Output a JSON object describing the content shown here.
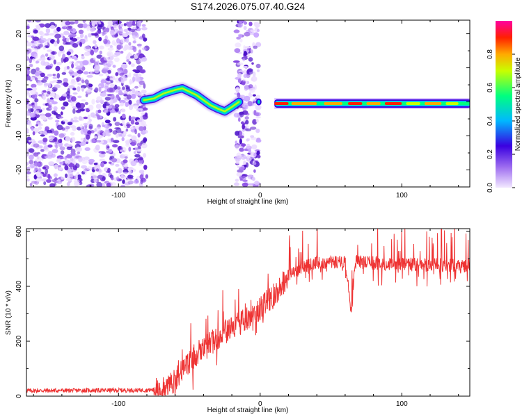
{
  "title": "S174.2026.075.07.40.G24",
  "chart_data": [
    {
      "type": "heatmap",
      "xlabel": "Height of straight line (km)",
      "ylabel": "Frequency (Hz)",
      "xlim": [
        -165,
        148
      ],
      "ylim": [
        -25,
        24
      ],
      "xticks": [
        -100,
        0,
        100
      ],
      "yticks": [
        20,
        10,
        0,
        -10,
        -20
      ],
      "colorbar_label": "Normalized spectral amplitude",
      "colorbar_ticks": [
        0.0,
        0.2,
        0.4,
        0.6,
        0.8
      ],
      "colorbar_range": [
        0,
        1
      ],
      "noise_regions_km": [
        [
          -165,
          -80
        ],
        [
          -16,
          -1
        ]
      ],
      "ridge": [
        {
          "x": -82,
          "f": 0.5
        },
        {
          "x": -75,
          "f": 1.0
        },
        {
          "x": -68,
          "f": 2.5
        },
        {
          "x": -60,
          "f": 3.5
        },
        {
          "x": -55,
          "f": 4.0
        },
        {
          "x": -50,
          "f": 3.0
        },
        {
          "x": -45,
          "f": 2.0
        },
        {
          "x": -40,
          "f": 0.5
        },
        {
          "x": -35,
          "f": -1.0
        },
        {
          "x": -30,
          "f": -2.0
        },
        {
          "x": -25,
          "f": -2.8
        },
        {
          "x": -20,
          "f": -1.5
        },
        {
          "x": -15,
          "f": 0.0
        }
      ],
      "tone": {
        "x_start": 10,
        "x_end": 148,
        "f": -0.5
      }
    },
    {
      "type": "line",
      "xlabel": "Height of straight line (km)",
      "ylabel": "SNR (10 * v/v)",
      "xlim": [
        -165,
        148
      ],
      "ylim": [
        0,
        610
      ],
      "xticks": [
        -100,
        0,
        100
      ],
      "yticks": [
        0,
        200,
        400,
        600
      ],
      "color": "#ee3333",
      "series": [
        {
          "name": "SNR",
          "x": [
            -165,
            -80,
            -70,
            -60,
            -50,
            -40,
            -30,
            -20,
            -10,
            0,
            10,
            20,
            30,
            40,
            50,
            60,
            64,
            65,
            67,
            68,
            80,
            100,
            120,
            148
          ],
          "y": [
            20,
            22,
            25,
            60,
            120,
            170,
            215,
            250,
            280,
            320,
            370,
            440,
            470,
            485,
            488,
            488,
            320,
            320,
            488,
            490,
            485,
            480,
            478,
            475
          ]
        }
      ]
    }
  ]
}
